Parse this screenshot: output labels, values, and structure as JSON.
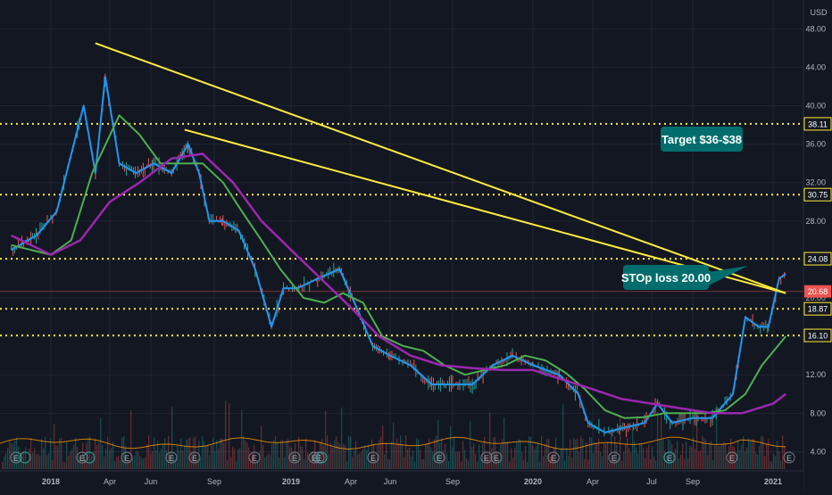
{
  "chart_data": {
    "type": "line",
    "currency": "USD",
    "y_axis": {
      "scale": "linear",
      "range": [
        2,
        51
      ],
      "ticks": [
        "48.00",
        "44.00",
        "40.00",
        "36.00",
        "32.00",
        "28.00",
        "24.00",
        "20.00",
        "16.00",
        "12.00",
        "8.00",
        "4.00"
      ],
      "tick_values": [
        48,
        44,
        40,
        36,
        32,
        28,
        24,
        20,
        16,
        12,
        8,
        4
      ]
    },
    "x_axis": {
      "ticks": [
        "2018",
        "Apr",
        "Jun",
        "Sep",
        "2019",
        "Apr",
        "Jun",
        "Sep",
        "2020",
        "Apr",
        "Jul",
        "Sep",
        "2021"
      ],
      "tick_values": [
        "2018-01-01",
        "2018-04-01",
        "2018-06-01",
        "2018-09-01",
        "2019-01-01",
        "2019-04-01",
        "2019-06-01",
        "2019-09-01",
        "2020-01-01",
        "2020-04-01",
        "2020-07-01",
        "2020-09-01",
        "2021-01-01"
      ]
    },
    "horizontal_levels": [
      {
        "value": 38.11,
        "label": "38.11",
        "style": "dotted",
        "color": "#ffeb3b"
      },
      {
        "value": 30.75,
        "label": "30.75",
        "style": "dotted",
        "color": "#ffeb3b"
      },
      {
        "value": 24.08,
        "label": "24.08",
        "style": "dotted",
        "color": "#ffeb3b"
      },
      {
        "value": 18.87,
        "label": "18.87",
        "style": "dotted",
        "color": "#ffeb3b"
      },
      {
        "value": 16.1,
        "label": "16.10",
        "style": "dotted",
        "color": "#ffeb3b"
      }
    ],
    "last_price": {
      "value": 20.68,
      "label": "20.68",
      "color": "#ef5350"
    },
    "trendlines": [
      {
        "from": [
          "2018-03-10",
          46.5
        ],
        "to": [
          "2021-01-20",
          20.5
        ],
        "color": "#ffeb3b"
      },
      {
        "from": [
          "2018-07-20",
          37.5
        ],
        "to": [
          "2021-01-20",
          20.5
        ],
        "color": "#ffeb3b"
      }
    ],
    "annotations": [
      {
        "text": "Target $36-$38",
        "bg": "#006d6d"
      },
      {
        "text": "STOp loss 20.00",
        "bg": "#006d6d"
      }
    ],
    "series": [
      {
        "color": "#2196f3",
        "x": [
          "2017-11-15",
          "2017-12-15",
          "2018-01-10",
          "2018-02-05",
          "2018-02-20",
          "2018-03-10",
          "2018-03-25",
          "2018-04-15",
          "2018-05-10",
          "2018-06-05",
          "2018-07-01",
          "2018-07-25",
          "2018-08-10",
          "2018-08-25",
          "2018-09-15",
          "2018-10-10",
          "2018-11-05",
          "2018-12-01",
          "2018-12-20",
          "2019-01-10",
          "2019-02-10",
          "2019-03-15",
          "2019-04-10",
          "2019-05-05",
          "2019-06-01",
          "2019-07-01",
          "2019-08-01",
          "2019-09-01",
          "2019-10-01",
          "2019-11-01",
          "2019-12-01",
          "2020-01-01",
          "2020-02-10",
          "2020-03-10",
          "2020-03-25",
          "2020-04-20",
          "2020-05-20",
          "2020-06-20",
          "2020-07-10",
          "2020-08-01",
          "2020-09-01",
          "2020-10-01",
          "2020-11-01",
          "2020-11-20",
          "2020-12-10",
          "2020-12-25",
          "2021-01-10",
          "2021-01-20"
        ],
        "values": [
          25.0,
          26.5,
          29,
          36,
          40,
          33,
          43,
          34,
          33,
          34,
          33,
          36,
          33,
          28,
          28,
          27,
          23,
          17,
          21,
          21,
          22,
          23,
          19,
          15,
          14,
          13,
          11,
          11,
          11,
          13,
          14,
          13,
          12,
          10,
          7,
          6,
          6.5,
          7,
          9,
          7,
          7.5,
          7.5,
          10,
          18,
          17,
          17,
          22,
          22.5
        ]
      },
      {
        "color": "#4caf50",
        "x": [
          "2017-11-15",
          "2018-01-01",
          "2018-02-01",
          "2018-03-05",
          "2018-04-15",
          "2018-05-15",
          "2018-06-15",
          "2018-07-15",
          "2018-08-15",
          "2018-09-15",
          "2018-10-15",
          "2018-11-15",
          "2018-12-15",
          "2019-01-20",
          "2019-02-20",
          "2019-03-20",
          "2019-04-20",
          "2019-05-20",
          "2019-06-20",
          "2019-07-20",
          "2019-08-20",
          "2019-09-20",
          "2019-10-20",
          "2019-11-20",
          "2019-12-20",
          "2020-01-20",
          "2020-02-20",
          "2020-03-20",
          "2020-04-20",
          "2020-05-20",
          "2020-06-20",
          "2020-07-20",
          "2020-08-20",
          "2020-09-20",
          "2020-10-20",
          "2020-11-20",
          "2020-12-15",
          "2021-01-20"
        ],
        "values": [
          25.5,
          24.5,
          26,
          33,
          39,
          37,
          34,
          34,
          34,
          32,
          29,
          26,
          23,
          20,
          19.5,
          20.5,
          19.5,
          16,
          15,
          14.5,
          13,
          12,
          12.5,
          13,
          14,
          13.5,
          12.2,
          10.5,
          8.3,
          7.5,
          7.6,
          8,
          8,
          8,
          8.3,
          10,
          13,
          16
        ]
      },
      {
        "color": "#9c27b0",
        "x": [
          "2017-11-15",
          "2018-01-01",
          "2018-02-15",
          "2018-04-01",
          "2018-05-15",
          "2018-07-01",
          "2018-08-15",
          "2018-10-01",
          "2018-11-15",
          "2019-01-01",
          "2019-02-15",
          "2019-04-01",
          "2019-05-15",
          "2019-07-01",
          "2019-08-15",
          "2019-10-01",
          "2019-11-15",
          "2020-01-01",
          "2020-02-15",
          "2020-04-01",
          "2020-05-15",
          "2020-07-01",
          "2020-08-15",
          "2020-10-01",
          "2020-11-15",
          "2021-01-01",
          "2021-01-20"
        ],
        "values": [
          26.5,
          24.5,
          26,
          30,
          32,
          34.5,
          35,
          32,
          28,
          25,
          22,
          19,
          16,
          14,
          13,
          12.7,
          12.5,
          12.5,
          11.5,
          10.5,
          9.5,
          9,
          8.5,
          8,
          8,
          9,
          10
        ]
      }
    ]
  }
}
